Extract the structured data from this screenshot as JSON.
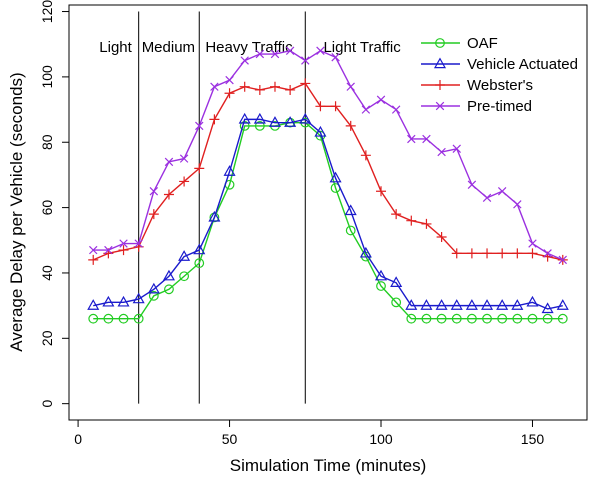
{
  "chart_data": {
    "type": "line",
    "xlabel": "Simulation Time (minutes)",
    "ylabel": "Average Delay per Vehicle (seconds)",
    "xlim": [
      -3,
      168
    ],
    "ylim": [
      -5,
      122
    ],
    "xticks": [
      0,
      50,
      100,
      150
    ],
    "yticks": [
      0,
      20,
      40,
      60,
      80,
      100,
      120
    ],
    "grid": false,
    "legend_position": "top-right",
    "phase_dividers": [
      20,
      40,
      75
    ],
    "phase_labels": [
      {
        "label": "Light",
        "x": 7
      },
      {
        "label": "Medium",
        "x": 21
      },
      {
        "label": "Heavy Traffic",
        "x": 42
      },
      {
        "label": "Light Traffic",
        "x": 81
      }
    ],
    "x": [
      5,
      10,
      15,
      20,
      25,
      30,
      35,
      40,
      45,
      50,
      55,
      60,
      65,
      70,
      75,
      80,
      85,
      90,
      95,
      100,
      105,
      110,
      115,
      120,
      125,
      130,
      135,
      140,
      145,
      150,
      155,
      160
    ],
    "series": [
      {
        "name": "OAF",
        "color": "#22cc22",
        "marker": "circle",
        "values": [
          26,
          26,
          26,
          26,
          33,
          35,
          39,
          43,
          57,
          67,
          85,
          85,
          85,
          86,
          86,
          82,
          66,
          53,
          45,
          36,
          31,
          26,
          26,
          26,
          26,
          26,
          26,
          26,
          26,
          26,
          26,
          26
        ]
      },
      {
        "name": "Vehicle Actuated",
        "color": "#1a1acc",
        "marker": "triangle",
        "values": [
          30,
          31,
          31,
          32,
          35,
          39,
          45,
          47,
          57,
          71,
          87,
          87,
          86,
          86,
          87,
          83,
          69,
          59,
          46,
          39,
          37,
          30,
          30,
          30,
          30,
          30,
          30,
          30,
          30,
          31,
          29,
          30
        ]
      },
      {
        "name": "Webster's",
        "color": "#e02020",
        "marker": "plus",
        "values": [
          44,
          46,
          47,
          48,
          58,
          64,
          68,
          72,
          87,
          95,
          97,
          96,
          97,
          96,
          98,
          91,
          91,
          85,
          76,
          65,
          58,
          56,
          55,
          51,
          46,
          46,
          46,
          46,
          46,
          46,
          45,
          44
        ]
      },
      {
        "name": "Pre-timed",
        "color": "#9b30e0",
        "marker": "cross",
        "values": [
          47,
          47,
          49,
          49,
          65,
          74,
          75,
          85,
          97,
          99,
          105,
          107,
          107,
          108,
          105,
          108,
          106,
          97,
          90,
          93,
          90,
          81,
          81,
          77,
          78,
          67,
          63,
          65,
          61,
          49,
          46,
          44
        ]
      }
    ]
  }
}
